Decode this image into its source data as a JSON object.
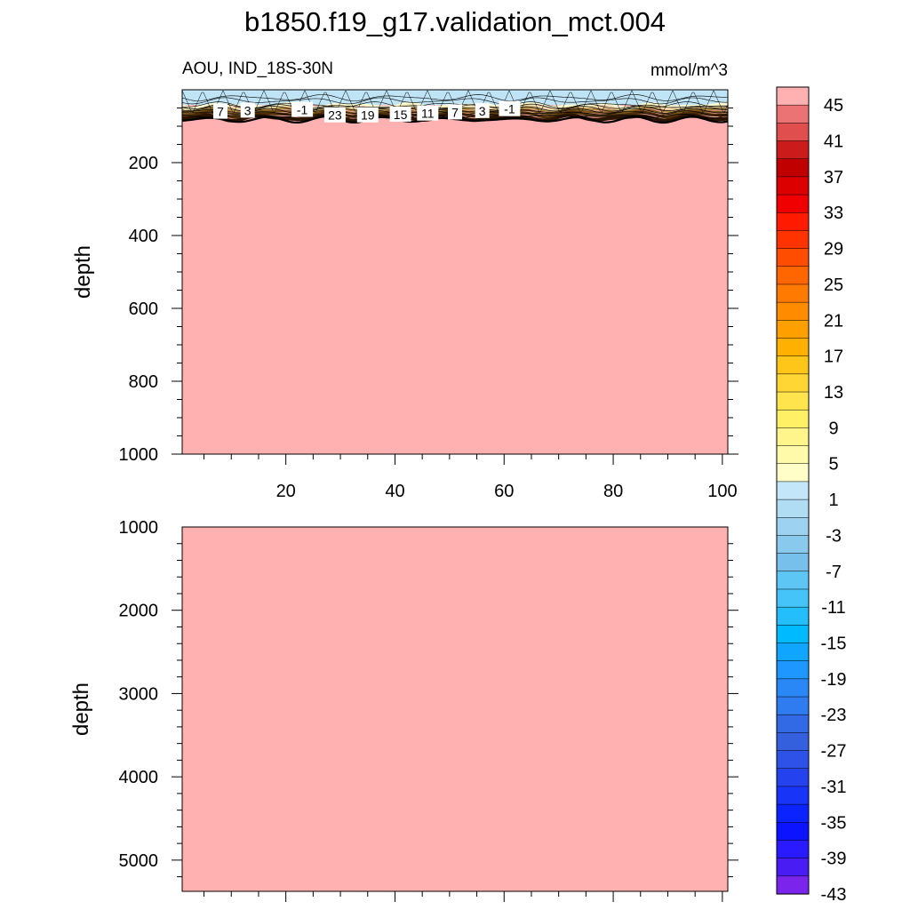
{
  "title": "b1850.f19_g17.validation_mct.004",
  "subtitle_left": "AOU, IND_18S-30N",
  "subtitle_right": "mmol/m^3",
  "colors": {
    "fill": "#FFB0B0",
    "surface_band": "#BEE4F6",
    "thermocline": "#2A1400"
  },
  "chart_data": [
    {
      "type": "heatmap",
      "panel": "upper",
      "ylabel": "depth",
      "xlim": [
        1,
        101
      ],
      "ylim": [
        0,
        1000
      ],
      "y_inverted": true,
      "x_ticks": [
        "20",
        "40",
        "60",
        "80",
        "100"
      ],
      "x_tick_values": [
        20,
        40,
        60,
        80,
        100
      ],
      "y_ticks": [
        "200",
        "400",
        "600",
        "800",
        "1000"
      ],
      "y_tick_values": [
        200,
        400,
        600,
        800,
        1000
      ],
      "contour_labels": [
        {
          "text": "7",
          "x": 8,
          "depth": 60
        },
        {
          "text": "3",
          "x": 13,
          "depth": 57
        },
        {
          "text": "-1",
          "x": 23,
          "depth": 55
        },
        {
          "text": "23",
          "x": 29,
          "depth": 70
        },
        {
          "text": "19",
          "x": 35,
          "depth": 70
        },
        {
          "text": "15",
          "x": 41,
          "depth": 68
        },
        {
          "text": "11",
          "x": 46,
          "depth": 65
        },
        {
          "text": "7",
          "x": 51,
          "depth": 62
        },
        {
          "text": "3",
          "x": 56,
          "depth": 58
        },
        {
          "text": "-1",
          "x": 61,
          "depth": 53
        }
      ]
    },
    {
      "type": "heatmap",
      "panel": "lower",
      "ylabel": "depth",
      "xlim": [
        1,
        101
      ],
      "ylim": [
        1000,
        5375
      ],
      "y_inverted": true,
      "y_ticks": [
        "1000",
        "2000",
        "3000",
        "4000",
        "5000"
      ],
      "y_tick_values": [
        1000,
        2000,
        3000,
        4000,
        5000
      ]
    }
  ],
  "colorbar": {
    "labels": [
      "45",
      "41",
      "37",
      "33",
      "29",
      "25",
      "21",
      "17",
      "13",
      "9",
      "5",
      "1",
      "-3",
      "-7",
      "-11",
      "-15",
      "-19",
      "-23",
      "-27",
      "-31",
      "-35",
      "-39",
      "-43"
    ],
    "colors": [
      "#FFB0B0",
      "#EC7373",
      "#E04E4E",
      "#CC1B1B",
      "#C00000",
      "#DC0000",
      "#F00000",
      "#FF1A00",
      "#FF3300",
      "#FF4D00",
      "#FF6600",
      "#FF7A00",
      "#FF8C00",
      "#FFA000",
      "#FFB000",
      "#FFC61A",
      "#FFD633",
      "#FFE44D",
      "#FFF066",
      "#FFF58A",
      "#FFFAAA",
      "#FFFEC8",
      "#C3E6F8",
      "#B1DDF4",
      "#9DD3F0",
      "#8AC9EE",
      "#76C0EB",
      "#5EC6F5",
      "#44C4F8",
      "#24BEFC",
      "#00BAFF",
      "#10A6FF",
      "#1E98FF",
      "#2A88F6",
      "#2E7CF0",
      "#326AE6",
      "#3460DE",
      "#2E52E8",
      "#2443EE",
      "#1834F6",
      "#0B24FF",
      "#0C14FF",
      "#2A1AFF",
      "#4A1CF4",
      "#7A24EC"
    ]
  }
}
